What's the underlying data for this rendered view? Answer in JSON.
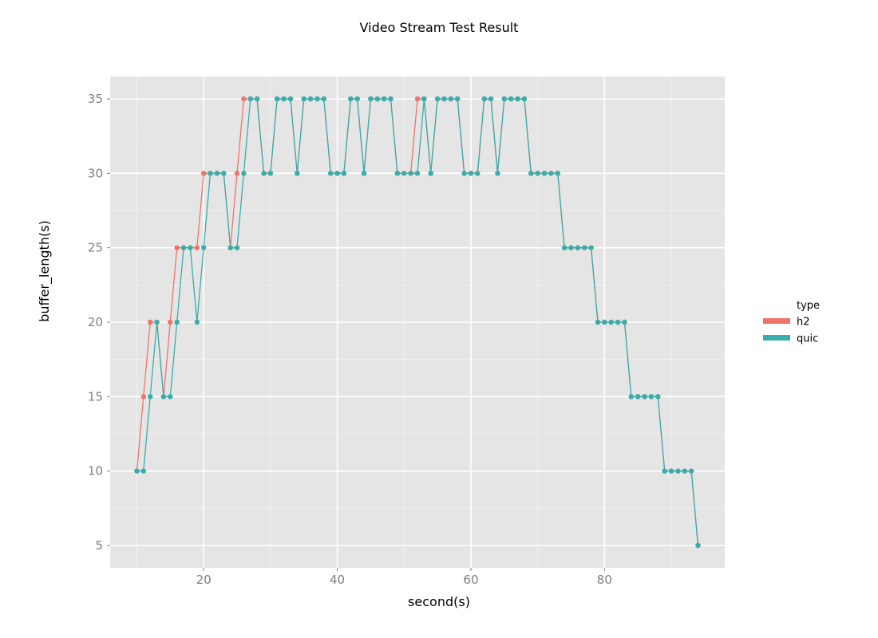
{
  "chart_data": {
    "type": "line",
    "title": "Video Stream Test Result",
    "xlabel": "second(s)",
    "ylabel": "buffer_length(s)",
    "xlim": [
      6,
      98
    ],
    "ylim": [
      3.5,
      36.5
    ],
    "x_ticks": [
      20,
      40,
      60,
      80
    ],
    "x_tick_labels": [
      "20",
      "40",
      "60",
      "80"
    ],
    "y_ticks": [
      5,
      10,
      15,
      20,
      25,
      30,
      35
    ],
    "y_tick_labels": [
      "5",
      "10",
      "15",
      "20",
      "25",
      "30",
      "35"
    ],
    "grid": true,
    "legend": {
      "title": "type",
      "position": "right"
    },
    "series": [
      {
        "name": "h2",
        "color": "#f0736b",
        "x": [
          10,
          11,
          12,
          13,
          14,
          15,
          16,
          17,
          18,
          19,
          20,
          21,
          22,
          23,
          24,
          25,
          26,
          27,
          28,
          29,
          30,
          31,
          32,
          33,
          34,
          35,
          36,
          37,
          38,
          39,
          40,
          41,
          42,
          43,
          44,
          45,
          46,
          47,
          48,
          49,
          50,
          51,
          52,
          53,
          54,
          55,
          56,
          57,
          58,
          59,
          60,
          61,
          62,
          63,
          64,
          65,
          66,
          67,
          68,
          69,
          70,
          71,
          72,
          73,
          74,
          75,
          76,
          77,
          78,
          79,
          80,
          81,
          82,
          83,
          84,
          85,
          86,
          87,
          88,
          89,
          90,
          91,
          92,
          93,
          94
        ],
        "values": [
          10,
          15,
          20,
          20,
          15,
          20,
          25,
          25,
          25,
          25,
          30,
          30,
          30,
          30,
          25,
          30,
          35,
          35,
          35,
          30,
          30,
          35,
          35,
          35,
          30,
          35,
          35,
          35,
          35,
          30,
          30,
          30,
          35,
          35,
          30,
          35,
          35,
          35,
          35,
          30,
          30,
          30,
          35,
          35,
          30,
          35,
          35,
          35,
          35,
          30,
          30,
          30,
          35,
          35,
          30,
          35,
          35,
          35,
          35,
          30,
          30,
          30,
          30,
          30,
          25,
          25,
          25,
          25,
          25,
          20,
          20,
          20,
          20,
          20,
          15,
          15,
          15,
          15,
          15,
          10,
          10,
          10,
          10,
          10,
          5
        ]
      },
      {
        "name": "quic",
        "color": "#38aeac",
        "x": [
          10,
          11,
          12,
          13,
          14,
          15,
          16,
          17,
          18,
          19,
          20,
          21,
          22,
          23,
          24,
          25,
          26,
          27,
          28,
          29,
          30,
          31,
          32,
          33,
          34,
          35,
          36,
          37,
          38,
          39,
          40,
          41,
          42,
          43,
          44,
          45,
          46,
          47,
          48,
          49,
          50,
          51,
          52,
          53,
          54,
          55,
          56,
          57,
          58,
          59,
          60,
          61,
          62,
          63,
          64,
          65,
          66,
          67,
          68,
          69,
          70,
          71,
          72,
          73,
          74,
          75,
          76,
          77,
          78,
          79,
          80,
          81,
          82,
          83,
          84,
          85,
          86,
          87,
          88,
          89,
          90,
          91,
          92,
          93,
          94
        ],
        "values": [
          10,
          10,
          15,
          20,
          15,
          15,
          20,
          25,
          25,
          20,
          25,
          30,
          30,
          30,
          25,
          25,
          30,
          35,
          35,
          30,
          30,
          35,
          35,
          35,
          30,
          35,
          35,
          35,
          35,
          30,
          30,
          30,
          35,
          35,
          30,
          35,
          35,
          35,
          35,
          30,
          30,
          30,
          30,
          35,
          30,
          35,
          35,
          35,
          35,
          30,
          30,
          30,
          35,
          35,
          30,
          35,
          35,
          35,
          35,
          30,
          30,
          30,
          30,
          30,
          25,
          25,
          25,
          25,
          25,
          20,
          20,
          20,
          20,
          20,
          15,
          15,
          15,
          15,
          15,
          10,
          10,
          10,
          10,
          10,
          5
        ]
      }
    ]
  }
}
